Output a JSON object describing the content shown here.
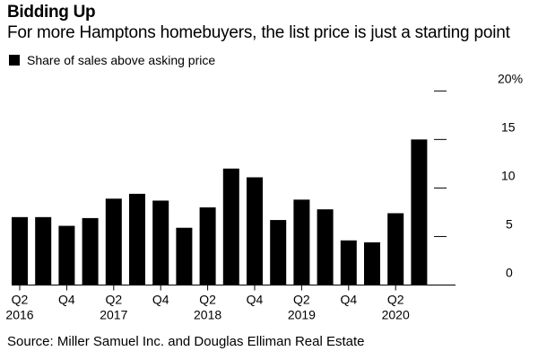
{
  "title": "Bidding Up",
  "subtitle": "For more Hamptons homebuyers, the list price is just a starting point",
  "source": "Source: Miller Samuel Inc. and Douglas Elliman Real Estate",
  "chart_data": {
    "type": "bar",
    "legend": [
      "Share of sales above asking price"
    ],
    "legend_position": "top-left",
    "categories": [
      "Q2 2016",
      "Q3 2016",
      "Q4 2016",
      "Q1 2017",
      "Q2 2017",
      "Q3 2017",
      "Q4 2017",
      "Q1 2018",
      "Q2 2018",
      "Q3 2018",
      "Q4 2018",
      "Q1 2019",
      "Q2 2019",
      "Q3 2019",
      "Q4 2019",
      "Q1 2020",
      "Q2 2020",
      "Q3 2020"
    ],
    "values": [
      7.0,
      7.0,
      6.1,
      6.9,
      8.9,
      9.4,
      8.7,
      5.9,
      8.0,
      12.0,
      11.1,
      6.7,
      8.8,
      7.8,
      4.6,
      4.4,
      7.4,
      15.0
    ],
    "ylim": [
      0,
      20
    ],
    "yticks": [
      0,
      5,
      10,
      15,
      20
    ],
    "ytick_labels": [
      "0",
      "5",
      "10",
      "15",
      "20%"
    ],
    "xtick_labels": [
      {
        "index": 0,
        "line1": "Q2",
        "line2": "2016"
      },
      {
        "index": 2,
        "line1": "Q4",
        "line2": ""
      },
      {
        "index": 4,
        "line1": "Q2",
        "line2": "2017"
      },
      {
        "index": 6,
        "line1": "Q4",
        "line2": ""
      },
      {
        "index": 8,
        "line1": "Q2",
        "line2": "2018"
      },
      {
        "index": 10,
        "line1": "Q4",
        "line2": ""
      },
      {
        "index": 12,
        "line1": "Q2",
        "line2": "2019"
      },
      {
        "index": 14,
        "line1": "Q4",
        "line2": ""
      },
      {
        "index": 16,
        "line1": "Q2",
        "line2": "2020"
      }
    ],
    "color": "#000000",
    "grid": false,
    "xlabel": "",
    "ylabel": ""
  }
}
